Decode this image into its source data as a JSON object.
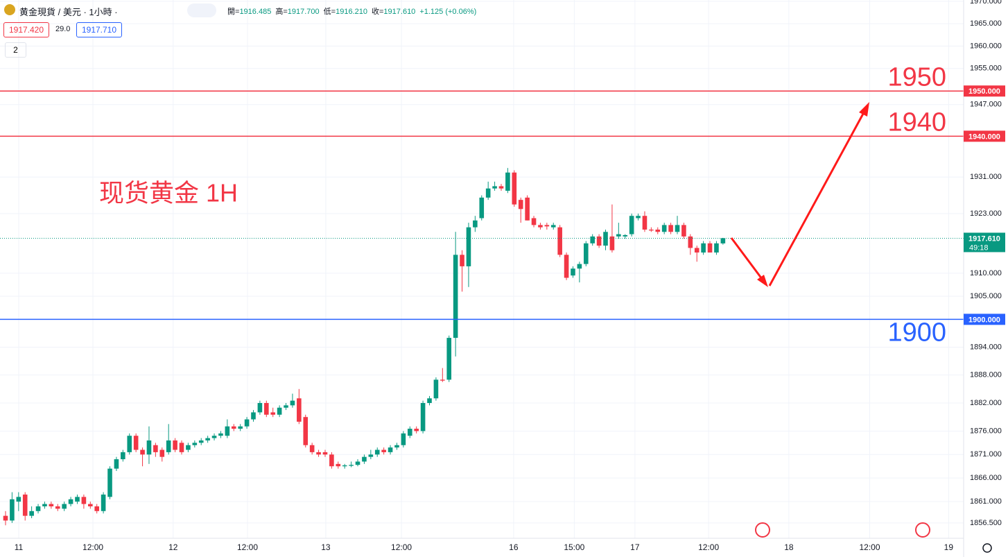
{
  "header": {
    "symbol": "黄金現貨 / 美元 · 1小時 ·",
    "ohlc": [
      {
        "label": "開=",
        "value": "1916.485"
      },
      {
        "label": "高=",
        "value": "1917.700"
      },
      {
        "label": "低=",
        "value": "1916.210"
      },
      {
        "label": "收=",
        "value": "1917.610"
      }
    ],
    "change": "+1.125 (+0.06%)",
    "sell": "1917.420",
    "spread": "29.0",
    "buy": "1917.710",
    "indicators": "2"
  },
  "chart_data": {
    "type": "candlestick",
    "title": "现货黄金 1H",
    "up_color": "#089981",
    "down_color": "#f23645",
    "log_scale": true,
    "grid": true,
    "open": [
      1858,
      1857,
      1861,
      1862.5,
      1858,
      1859,
      1860,
      1860.5,
      1860,
      1859.5,
      1860.5,
      1861,
      1862,
      1860.5,
      1860,
      1859,
      1862,
      1868,
      1870,
      1871.5,
      1875,
      1872,
      1871,
      1873,
      1872,
      1871.5,
      1874,
      1873.5,
      1872,
      1873,
      1873.5,
      1874,
      1874.5,
      1875,
      1875,
      1877,
      1876.5,
      1877,
      1878.5,
      1880,
      1882,
      1880,
      1879.5,
      1881,
      1881.5,
      1883,
      1879,
      1873,
      1871.5,
      1871.5,
      1871,
      1869,
      1868.5,
      1868.6,
      1868.8,
      1869.5,
      1870.5,
      1871,
      1872,
      1871.5,
      1872.5,
      1873,
      1875,
      1876.5,
      1876,
      1882,
      1883,
      1887,
      1887,
      1896,
      1914,
      1911.5,
      1920,
      1922,
      1926.5,
      1928.5,
      1929,
      1928,
      1932,
      1926,
      1926.5,
      1922,
      1920.5,
      1920.5,
      1920,
      1920,
      1914,
      1909.5,
      1911,
      1912,
      1916.5,
      1918,
      1916,
      1918,
      1918,
      1918,
      1918.5,
      1922,
      1922.5,
      1919.5,
      1919.5,
      1919,
      1920.5,
      1919,
      1920.5,
      1918,
      1915.5,
      1914.5,
      1916.5,
      1914.5,
      1916.485
    ],
    "high": [
      1859,
      1863,
      1863,
      1863,
      1860,
      1860.5,
      1861,
      1861,
      1860.5,
      1861,
      1862,
      1862.5,
      1862.5,
      1861,
      1860.5,
      1863,
      1868.5,
      1870.5,
      1872,
      1875.5,
      1875.5,
      1872.5,
      1877,
      1873.5,
      1872.5,
      1877.5,
      1874.5,
      1874,
      1873.5,
      1874,
      1874.5,
      1875,
      1875.5,
      1876,
      1878.5,
      1877.5,
      1877.5,
      1879,
      1880.5,
      1882.5,
      1882.5,
      1881,
      1881.5,
      1882,
      1884,
      1885,
      1879.5,
      1873.5,
      1872,
      1872,
      1871.5,
      1869.5,
      1869,
      1869.5,
      1870,
      1871,
      1872,
      1872.5,
      1872.5,
      1873,
      1873.5,
      1876,
      1877,
      1877,
      1882.5,
      1883.5,
      1887.5,
      1889.5,
      1896.5,
      1919,
      1915,
      1921,
      1922.5,
      1927,
      1930,
      1930,
      1929.5,
      1933,
      1932.5,
      1926.5,
      1927,
      1922.5,
      1921,
      1921,
      1921,
      1920.5,
      1914.5,
      1911.5,
      1912.5,
      1917,
      1918.5,
      1918.5,
      1919.5,
      1925,
      1921,
      1918.5,
      1923,
      1923,
      1923.5,
      1920,
      1920,
      1921,
      1921,
      1922.5,
      1921,
      1918.5,
      1916,
      1917,
      1917,
      1917,
      1917.7
    ],
    "low": [
      1856,
      1856.5,
      1859,
      1857,
      1857.5,
      1858.5,
      1859.5,
      1859.5,
      1859,
      1859,
      1860,
      1860.5,
      1859.5,
      1859.5,
      1858.5,
      1858.5,
      1861.5,
      1867.5,
      1869.5,
      1871,
      1871.5,
      1868.5,
      1869,
      1870.5,
      1869.5,
      1871,
      1871.5,
      1871,
      1871.5,
      1872.5,
      1873,
      1873.5,
      1874,
      1874.5,
      1874.5,
      1876,
      1876,
      1876.5,
      1878,
      1879.5,
      1879,
      1879,
      1879,
      1880.5,
      1881,
      1877.5,
      1872.5,
      1871,
      1870.5,
      1870.5,
      1868,
      1868,
      1868,
      1868.3,
      1868.5,
      1869,
      1870,
      1870.5,
      1871,
      1871,
      1872,
      1872.5,
      1874.5,
      1875.5,
      1875.5,
      1881.5,
      1882.5,
      1886.5,
      1886.5,
      1892,
      1906,
      1907,
      1919,
      1921.5,
      1926,
      1928,
      1928,
      1927.5,
      1924.5,
      1921,
      1921.5,
      1920,
      1919.5,
      1919.5,
      1919.5,
      1913.5,
      1908.5,
      1909,
      1908,
      1911.5,
      1916,
      1915.5,
      1915,
      1914.5,
      1917.5,
      1917.5,
      1918,
      1921.5,
      1919,
      1919,
      1918.5,
      1918.5,
      1918.5,
      1918.5,
      1917.5,
      1914,
      1912.5,
      1914,
      1914.5,
      1914,
      1916.21
    ],
    "close": [
      1857,
      1861.5,
      1862,
      1858,
      1859,
      1860,
      1860.5,
      1860,
      1859.5,
      1860.5,
      1861.5,
      1862,
      1860.5,
      1860,
      1859,
      1862.5,
      1868,
      1870,
      1871.5,
      1875,
      1872,
      1871,
      1874,
      1871.5,
      1870.5,
      1874,
      1872,
      1871.5,
      1873,
      1873.5,
      1874,
      1874.5,
      1875,
      1875.5,
      1877,
      1876.5,
      1877,
      1878.5,
      1880,
      1882,
      1879.5,
      1879.5,
      1881,
      1881.5,
      1882.5,
      1878,
      1873,
      1871.5,
      1871,
      1871,
      1868.5,
      1868.5,
      1868.7,
      1868.8,
      1869.5,
      1870.5,
      1871,
      1872,
      1871.5,
      1872.5,
      1873,
      1875.5,
      1876.5,
      1876,
      1882,
      1883,
      1887,
      1886.8,
      1896,
      1914,
      1911.5,
      1920,
      1921.5,
      1926.5,
      1928.5,
      1929,
      1928.5,
      1932,
      1925,
      1924,
      1921.5,
      1920.5,
      1920,
      1920.2,
      1920.5,
      1914,
      1909,
      1911,
      1912,
      1916.5,
      1918,
      1916,
      1919,
      1915,
      1918.5,
      1918.3,
      1922.5,
      1922.5,
      1919.5,
      1919.3,
      1919,
      1920.5,
      1919,
      1920.5,
      1918,
      1915.5,
      1914.5,
      1916.5,
      1914.5,
      1916.5,
      1917.61
    ],
    "xlim": [
      -0.85,
      146.9
    ],
    "xticks": [
      {
        "value": 2.02,
        "label": "11"
      },
      {
        "value": 13.4,
        "label": "12:00"
      },
      {
        "value": 25.7,
        "label": "12"
      },
      {
        "value": 37.1,
        "label": "12:00"
      },
      {
        "value": 49.1,
        "label": "13"
      },
      {
        "value": 60.7,
        "label": "12:00"
      },
      {
        "value": 77.9,
        "label": "16"
      },
      {
        "value": 87.2,
        "label": "15:00"
      },
      {
        "value": 96.5,
        "label": "17"
      },
      {
        "value": 107.8,
        "label": "12:00"
      },
      {
        "value": 120.1,
        "label": "18"
      },
      {
        "value": 132.5,
        "label": "12:00"
      },
      {
        "value": 144.6,
        "label": "19"
      }
    ],
    "ylim": [
      1855.6,
      1970.3
    ],
    "yticks": [
      {
        "value": 1970,
        "label": "1970.000"
      },
      {
        "value": 1965,
        "label": "1965.000"
      },
      {
        "value": 1960,
        "label": "1960.000"
      },
      {
        "value": 1955,
        "label": "1955.000"
      },
      {
        "value": 1947,
        "label": "1947.000"
      },
      {
        "value": 1931,
        "label": "1931.000"
      },
      {
        "value": 1923,
        "label": "1923.000"
      },
      {
        "value": 1910,
        "label": "1910.000"
      },
      {
        "value": 1905,
        "label": "1905.000"
      },
      {
        "value": 1894,
        "label": "1894.000"
      },
      {
        "value": 1888,
        "label": "1888.000"
      },
      {
        "value": 1882,
        "label": "1882.000"
      },
      {
        "value": 1876,
        "label": "1876.000"
      },
      {
        "value": 1871,
        "label": "1871.000"
      },
      {
        "value": 1866,
        "label": "1866.000"
      },
      {
        "value": 1861,
        "label": "1861.000"
      },
      {
        "value": 1856.5,
        "label": "1856.500"
      }
    ],
    "hlines": [
      {
        "value": 1950,
        "color": "#f23645",
        "label": "1950",
        "tag": "1950.000"
      },
      {
        "value": 1940,
        "color": "#f23645",
        "label": "1940",
        "tag": "1940.000"
      },
      {
        "value": 1900,
        "color": "#2962ff",
        "label": "1900",
        "tag": "1900.000"
      }
    ],
    "last_price": {
      "value": 1917.61,
      "label": "1917.610",
      "countdown": "49:18",
      "color": "#089981"
    }
  }
}
